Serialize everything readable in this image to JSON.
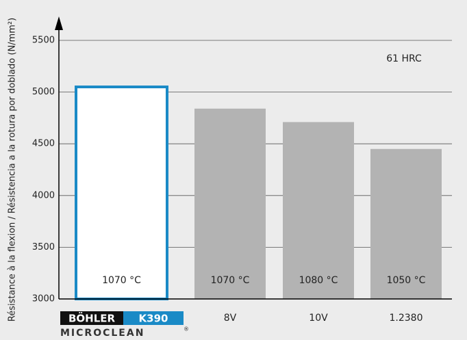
{
  "chart_data": {
    "type": "bar",
    "ylabel": "Résistance à la flexion / Résistencia a la rotura por doblado (N/mm²)",
    "annotation": "61 HRC",
    "categories": [
      null,
      "8V",
      "10V",
      "1.2380"
    ],
    "logo": {
      "brand": "BÖHLER",
      "grade": "K390",
      "sub": "MICROCLEAN",
      "mark": "®"
    },
    "values": [
      5050,
      4840,
      4710,
      4450
    ],
    "bar_texts": [
      "1070 °C",
      "1070 °C",
      "1080 °C",
      "1050 °C"
    ],
    "colors": [
      "#ffffff",
      "#b3b3b3",
      "#b3b3b3",
      "#b3b3b3"
    ],
    "edge_colors": [
      "#1a8ac6",
      null,
      null,
      null
    ],
    "ylim": [
      3000,
      5500
    ],
    "yticks": [
      3000,
      3500,
      4000,
      4500,
      5000,
      5500
    ],
    "grid": true
  }
}
